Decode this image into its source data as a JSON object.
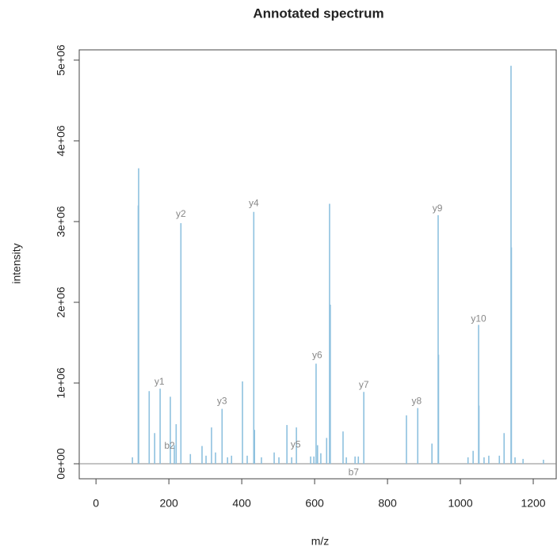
{
  "chart_data": {
    "type": "spectrum",
    "title": "Annotated spectrum",
    "x_label": "m/z",
    "y_label": "intensity",
    "color": "#8ec1df",
    "x": [
      100,
      117,
      116,
      146,
      161,
      176,
      204,
      215,
      220,
      233,
      259,
      291,
      302,
      317,
      328,
      346,
      361,
      372,
      402,
      415,
      433,
      435,
      454,
      489,
      502,
      524,
      537,
      550,
      589,
      598,
      604,
      608,
      617,
      633,
      641,
      643,
      678,
      687,
      711,
      720,
      735,
      852,
      883,
      922,
      939,
      940,
      1021,
      1035,
      1050,
      1051,
      1065,
      1078,
      1107,
      1120,
      1139,
      1140,
      1150,
      1172,
      1228
    ],
    "values": [
      80000,
      3660000,
      3200000,
      900000,
      380000,
      930000,
      830000,
      230000,
      490000,
      2980000,
      120000,
      220000,
      100000,
      450000,
      140000,
      680000,
      80000,
      100000,
      1020000,
      100000,
      3120000,
      420000,
      80000,
      140000,
      80000,
      480000,
      80000,
      450000,
      90000,
      90000,
      1240000,
      230000,
      130000,
      320000,
      3220000,
      1970000,
      400000,
      80000,
      90000,
      90000,
      890000,
      600000,
      690000,
      250000,
      3080000,
      1350000,
      80000,
      160000,
      1720000,
      720000,
      80000,
      100000,
      100000,
      380000,
      4930000,
      2680000,
      80000,
      60000,
      50000
    ],
    "annotations": [
      {
        "label": "y1",
        "x": 174,
        "y": 1010000
      },
      {
        "label": "b2",
        "x": 202,
        "y": 220000
      },
      {
        "label": "y2",
        "x": 233,
        "y": 3090000
      },
      {
        "label": "y3",
        "x": 346,
        "y": 770000
      },
      {
        "label": "y4",
        "x": 433,
        "y": 3220000
      },
      {
        "label": "y5",
        "x": 548,
        "y": 230000
      },
      {
        "label": "y6",
        "x": 607,
        "y": 1340000
      },
      {
        "label": "b7",
        "x": 707,
        "y": -110000
      },
      {
        "label": "y7",
        "x": 735,
        "y": 970000
      },
      {
        "label": "y8",
        "x": 880,
        "y": 770000
      },
      {
        "label": "y9",
        "x": 937,
        "y": 3160000
      },
      {
        "label": "y10",
        "x": 1050,
        "y": 1790000
      }
    ],
    "xlim": [
      -46,
      1263
    ],
    "ylim": [
      -186000,
      5127000
    ],
    "xticks": [
      0,
      200,
      400,
      600,
      800,
      1000,
      1200
    ],
    "yticks": [
      {
        "value": 0,
        "label": "0e+00"
      },
      {
        "value": 1000000,
        "label": "1e+06"
      },
      {
        "value": 2000000,
        "label": "2e+06"
      },
      {
        "value": 3000000,
        "label": "3e+06"
      },
      {
        "value": 4000000,
        "label": "4e+06"
      },
      {
        "value": 5000000,
        "label": "5e+06"
      }
    ]
  }
}
